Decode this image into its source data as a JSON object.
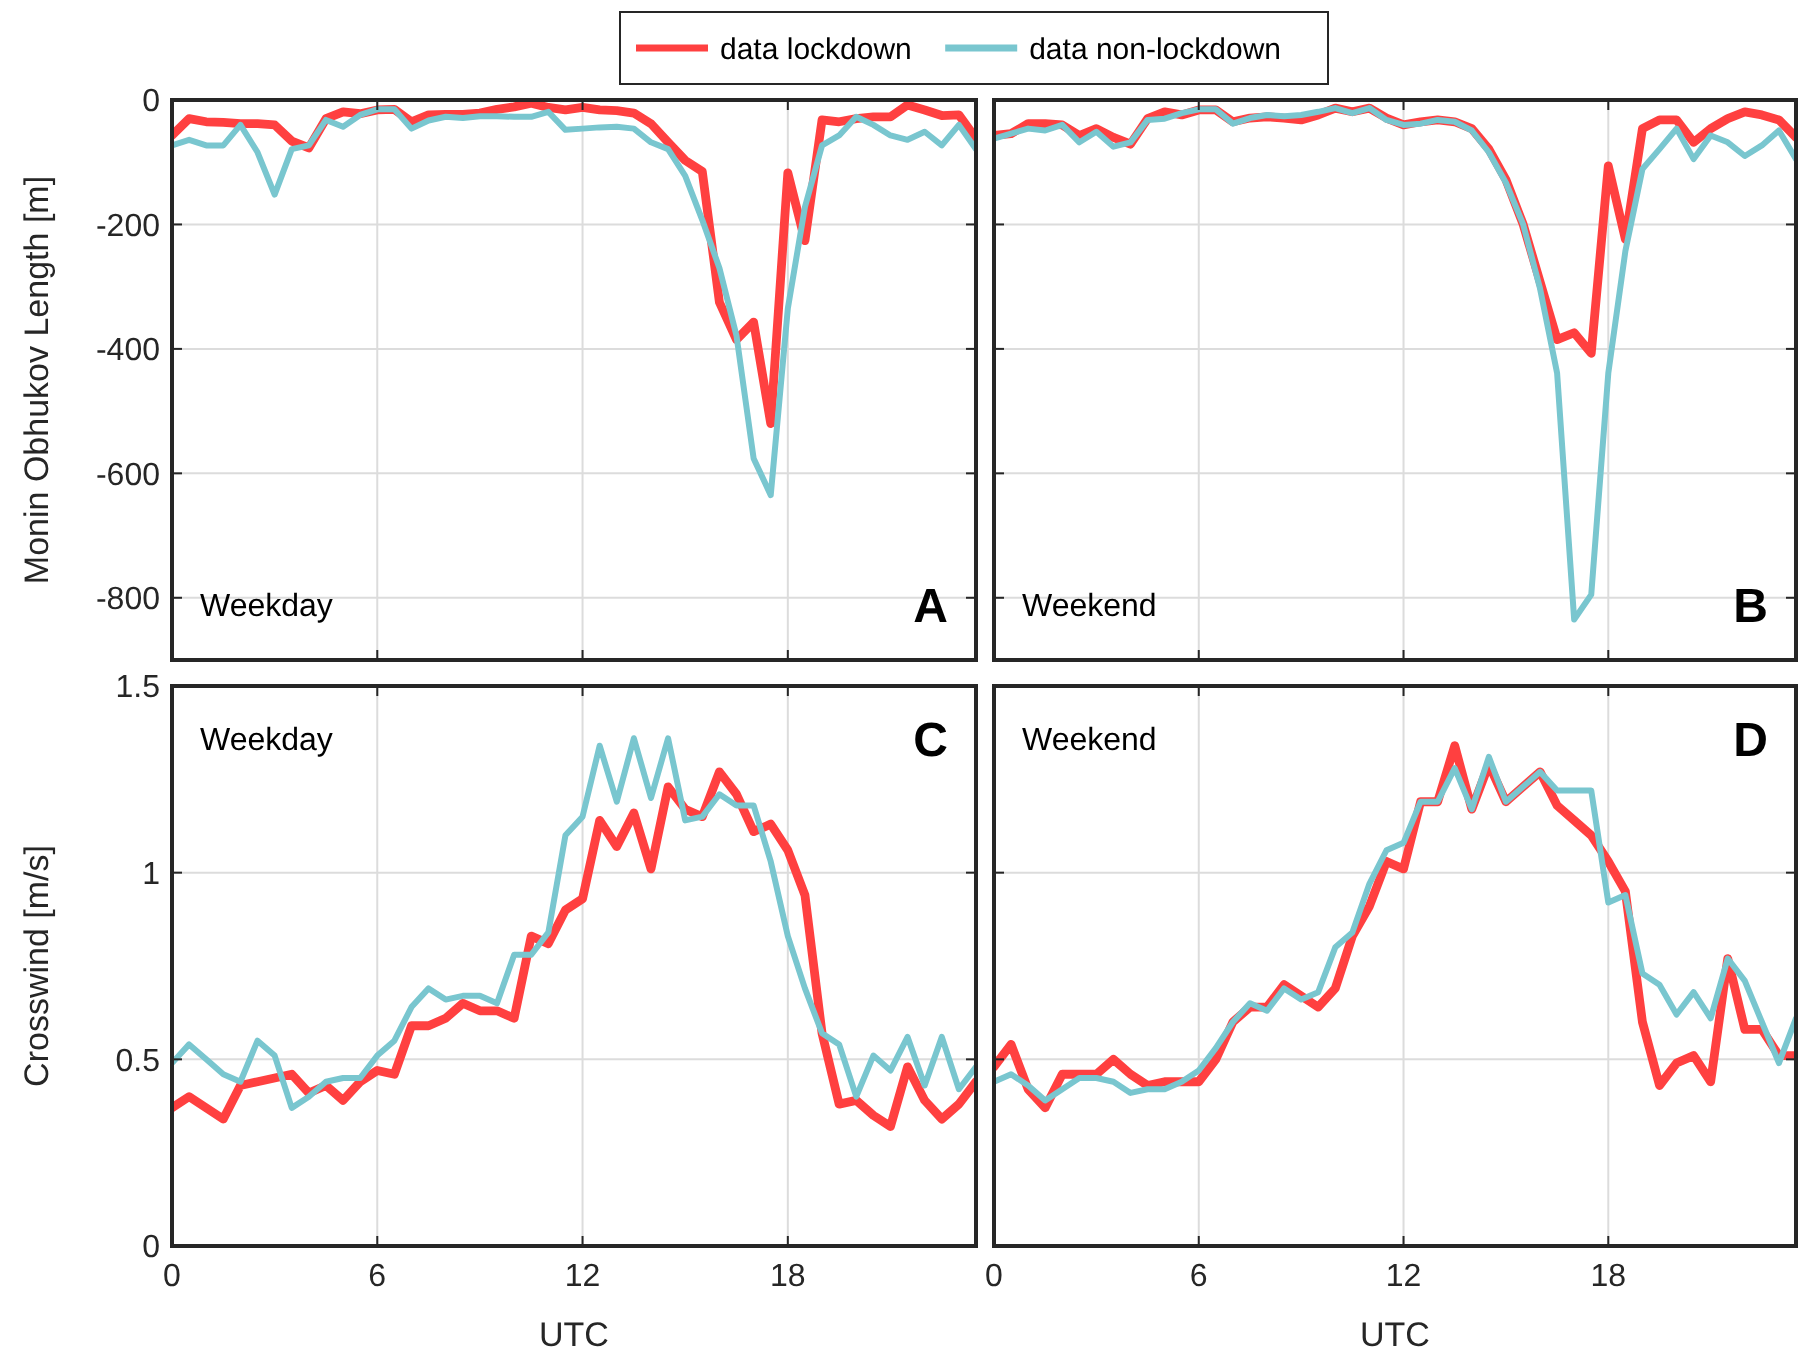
{
  "chart_data": [
    {
      "type": "line",
      "ylabel": "Monin Obhukov Length [m]",
      "annotations": [
        "Weekday",
        "A"
      ],
      "xlim": [
        0,
        23.5
      ],
      "xticks": [
        0,
        6,
        12,
        18
      ],
      "ylim": [
        -900,
        0
      ],
      "yticks": [
        -800,
        -600,
        -400,
        -200,
        0
      ],
      "grid": true,
      "legend": "top",
      "tick_labels": "y",
      "line_style": "solid",
      "marker": "none",
      "x": [
        0,
        0.5,
        1,
        1.5,
        2,
        2.5,
        3,
        3.5,
        4,
        4.5,
        5,
        5.5,
        6,
        6.5,
        7,
        7.5,
        8,
        8.5,
        9,
        9.5,
        10,
        10.5,
        11,
        11.5,
        12,
        12.5,
        13,
        13.5,
        14,
        14.5,
        15,
        15.5,
        16,
        16.5,
        17,
        17.5,
        18,
        18.5,
        19,
        19.5,
        20,
        20.5,
        21,
        21.5,
        22,
        22.5,
        23,
        23.5
      ],
      "series": [
        {
          "name": "data lockdown",
          "color": "#ff4040",
          "values": [
            -57,
            -30,
            -35,
            -36,
            -38,
            -38,
            -40,
            -66,
            -77,
            -30,
            -19,
            -22,
            -16,
            -15,
            -35,
            -24,
            -23,
            -23,
            -21,
            -15,
            -11,
            -5,
            -12,
            -16,
            -12,
            -16,
            -17,
            -21,
            -38,
            -68,
            -97,
            -115,
            -325,
            -385,
            -357,
            -520,
            -117,
            -226,
            -32,
            -35,
            -30,
            -27,
            -27,
            -8,
            -16,
            -25,
            -24,
            -62
          ]
        },
        {
          "name": "data non-lockdown",
          "color": "#79c6cf",
          "values": [
            -73,
            -64,
            -73,
            -73,
            -40,
            -84,
            -152,
            -79,
            -73,
            -32,
            -43,
            -24,
            -15,
            -15,
            -46,
            -33,
            -27,
            -29,
            -26,
            -26,
            -27,
            -27,
            -19,
            -48,
            -46,
            -44,
            -43,
            -46,
            -68,
            -79,
            -122,
            -193,
            -270,
            -379,
            -576,
            -635,
            -335,
            -172,
            -73,
            -57,
            -27,
            -40,
            -57,
            -64,
            -51,
            -73,
            -40,
            -79
          ]
        }
      ]
    },
    {
      "type": "line",
      "annotations": [
        "Weekend",
        "B"
      ],
      "xlim": [
        0,
        23.5
      ],
      "xticks": [
        0,
        6,
        12,
        18
      ],
      "ylim": [
        -900,
        0
      ],
      "yticks": [
        -800,
        -600,
        -400,
        -200,
        0
      ],
      "grid": true,
      "tick_labels": false,
      "line_style": "solid",
      "marker": "none",
      "x": [
        0,
        0.5,
        1,
        1.5,
        2,
        2.5,
        3,
        3.5,
        4,
        4.5,
        5,
        5.5,
        6,
        6.5,
        7,
        7.5,
        8,
        8.5,
        9,
        9.5,
        10,
        10.5,
        11,
        11.5,
        12,
        12.5,
        13,
        13.5,
        14,
        14.5,
        15,
        15.5,
        16,
        16.5,
        17,
        17.5,
        18,
        18.5,
        19,
        19.5,
        20,
        20.5,
        21,
        21.5,
        22,
        22.5,
        23,
        23.5
      ],
      "series": [
        {
          "color": "#ff4040",
          "values": [
            -57,
            -54,
            -38,
            -38,
            -40,
            -57,
            -46,
            -60,
            -71,
            -30,
            -19,
            -24,
            -16,
            -16,
            -35,
            -29,
            -27,
            -29,
            -32,
            -24,
            -13,
            -19,
            -13,
            -29,
            -40,
            -35,
            -32,
            -35,
            -46,
            -79,
            -128,
            -199,
            -292,
            -385,
            -374,
            -407,
            -106,
            -224,
            -46,
            -32,
            -32,
            -68,
            -46,
            -30,
            -19,
            -24,
            -32,
            -60
          ]
        },
        {
          "color": "#79c6cf",
          "values": [
            -62,
            -54,
            -46,
            -49,
            -40,
            -68,
            -51,
            -75,
            -68,
            -32,
            -30,
            -21,
            -15,
            -15,
            -38,
            -29,
            -24,
            -26,
            -24,
            -19,
            -13,
            -21,
            -13,
            -32,
            -40,
            -38,
            -32,
            -35,
            -49,
            -84,
            -133,
            -199,
            -303,
            -439,
            -835,
            -795,
            -439,
            -243,
            -111,
            -79,
            -46,
            -95,
            -57,
            -68,
            -90,
            -73,
            -49,
            -95
          ]
        }
      ]
    },
    {
      "type": "line",
      "ylabel": "Crosswind [m/s]",
      "xlabel": "UTC",
      "annotations": [
        "Weekday",
        "C"
      ],
      "xlim": [
        0,
        23.5
      ],
      "xticks": [
        0,
        6,
        12,
        18
      ],
      "ylim": [
        0,
        1.5
      ],
      "yticks": [
        0,
        0.5,
        1,
        1.5
      ],
      "grid": true,
      "line_style": "solid",
      "marker": "none",
      "x": [
        0,
        0.5,
        1,
        1.5,
        2,
        2.5,
        3,
        3.5,
        4,
        4.5,
        5,
        5.5,
        6,
        6.5,
        7,
        7.5,
        8,
        8.5,
        9,
        9.5,
        10,
        10.5,
        11,
        11.5,
        12,
        12.5,
        13,
        13.5,
        14,
        14.5,
        15,
        15.5,
        16,
        16.5,
        17,
        17.5,
        18,
        18.5,
        19,
        19.5,
        20,
        20.5,
        21,
        21.5,
        22,
        22.5,
        23,
        23.5
      ],
      "series": [
        {
          "color": "#ff4040",
          "values": [
            0.37,
            0.4,
            0.37,
            0.34,
            0.43,
            0.44,
            0.45,
            0.46,
            0.41,
            0.43,
            0.39,
            0.44,
            0.47,
            0.46,
            0.59,
            0.59,
            0.61,
            0.65,
            0.63,
            0.63,
            0.61,
            0.83,
            0.81,
            0.9,
            0.93,
            1.14,
            1.07,
            1.16,
            1.01,
            1.23,
            1.17,
            1.15,
            1.27,
            1.21,
            1.11,
            1.13,
            1.06,
            0.94,
            0.57,
            0.38,
            0.39,
            0.35,
            0.32,
            0.48,
            0.39,
            0.34,
            0.38,
            0.44
          ]
        },
        {
          "color": "#79c6cf",
          "values": [
            0.49,
            0.54,
            0.5,
            0.46,
            0.44,
            0.55,
            0.51,
            0.37,
            0.4,
            0.44,
            0.45,
            0.45,
            0.51,
            0.55,
            0.64,
            0.69,
            0.66,
            0.67,
            0.67,
            0.65,
            0.78,
            0.78,
            0.84,
            1.1,
            1.15,
            1.34,
            1.19,
            1.36,
            1.2,
            1.36,
            1.14,
            1.15,
            1.21,
            1.18,
            1.18,
            1.03,
            0.83,
            0.69,
            0.57,
            0.54,
            0.4,
            0.51,
            0.47,
            0.56,
            0.43,
            0.56,
            0.42,
            0.48
          ]
        }
      ]
    },
    {
      "type": "line",
      "xlabel": "UTC",
      "annotations": [
        "Weekend",
        "D"
      ],
      "xlim": [
        0,
        23.5
      ],
      "xticks": [
        0,
        6,
        12,
        18
      ],
      "ylim": [
        0,
        1.5
      ],
      "yticks": [
        0,
        0.5,
        1,
        1.5
      ],
      "grid": true,
      "tick_labels": "x",
      "line_style": "solid",
      "marker": "none",
      "x": [
        0,
        0.5,
        1,
        1.5,
        2,
        2.5,
        3,
        3.5,
        4,
        4.5,
        5,
        5.5,
        6,
        6.5,
        7,
        7.5,
        8,
        8.5,
        9,
        9.5,
        10,
        10.5,
        11,
        11.5,
        12,
        12.5,
        13,
        13.5,
        14,
        14.5,
        15,
        15.5,
        16,
        16.5,
        17,
        17.5,
        18,
        18.5,
        19,
        19.5,
        20,
        20.5,
        21,
        21.5,
        22,
        22.5,
        23,
        23.5
      ],
      "series": [
        {
          "color": "#ff4040",
          "values": [
            0.48,
            0.54,
            0.42,
            0.37,
            0.46,
            0.46,
            0.46,
            0.5,
            0.46,
            0.43,
            0.44,
            0.44,
            0.44,
            0.5,
            0.6,
            0.64,
            0.64,
            0.7,
            0.67,
            0.64,
            0.69,
            0.83,
            0.91,
            1.03,
            1.01,
            1.19,
            1.19,
            1.34,
            1.17,
            1.29,
            1.19,
            1.23,
            1.27,
            1.18,
            1.14,
            1.1,
            1.03,
            0.95,
            0.6,
            0.43,
            0.49,
            0.51,
            0.44,
            0.77,
            0.58,
            0.58,
            0.51,
            0.51
          ]
        },
        {
          "color": "#79c6cf",
          "values": [
            0.44,
            0.46,
            0.43,
            0.39,
            0.42,
            0.45,
            0.45,
            0.44,
            0.41,
            0.42,
            0.42,
            0.44,
            0.47,
            0.53,
            0.6,
            0.65,
            0.63,
            0.69,
            0.66,
            0.68,
            0.8,
            0.84,
            0.97,
            1.06,
            1.08,
            1.19,
            1.19,
            1.28,
            1.17,
            1.31,
            1.19,
            1.23,
            1.27,
            1.22,
            1.22,
            1.22,
            0.92,
            0.94,
            0.73,
            0.7,
            0.62,
            0.68,
            0.61,
            0.77,
            0.71,
            0.6,
            0.49,
            0.61
          ]
        }
      ]
    }
  ]
}
